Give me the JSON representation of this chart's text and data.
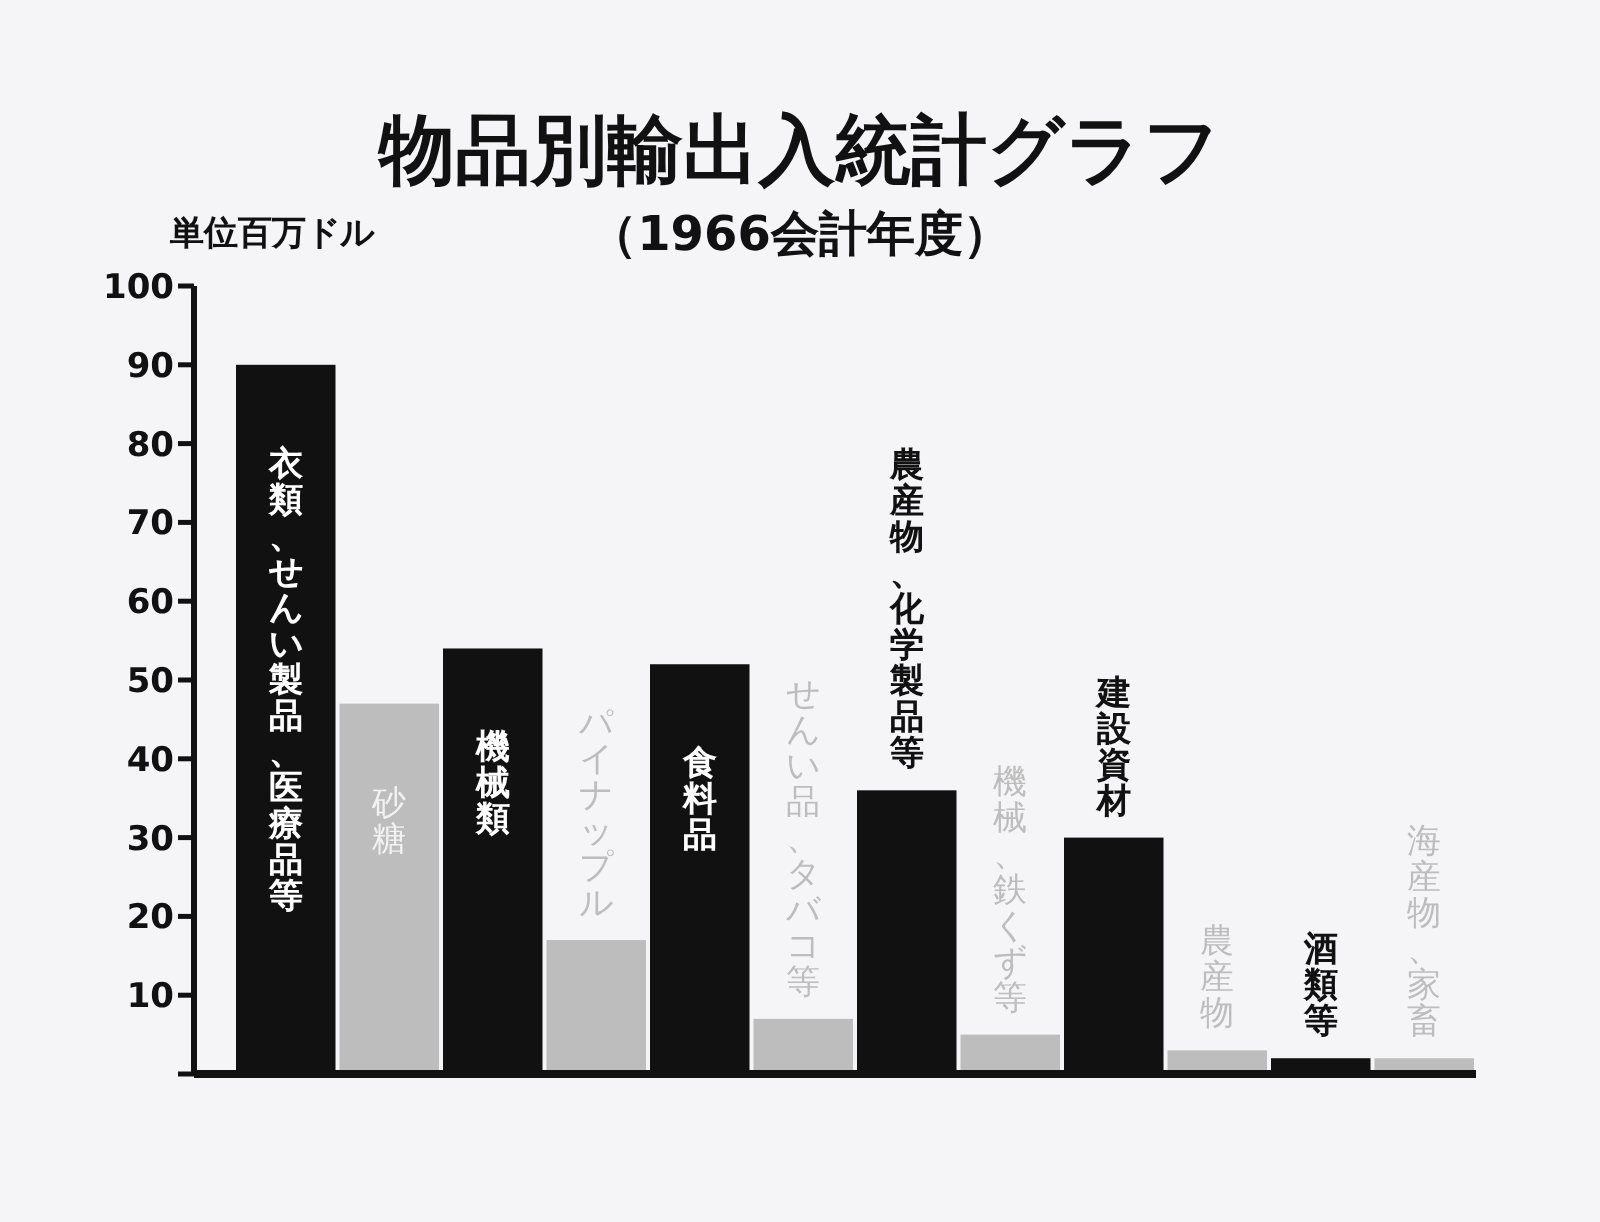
{
  "chart_data": {
    "type": "bar",
    "title": "物品別輸出入統計グラフ",
    "subtitle": "（1966会計年度）",
    "ylabel": "単位百万ドル",
    "categories": [
      "衣類、せんい製品、医療品等",
      "砂糖",
      "機械類",
      "パイナップル",
      "食料品",
      "せんい品、タバコ等",
      "農産物、化学製品等",
      "機械、鉄くず等",
      "建設資材",
      "農産物",
      "酒類等",
      "海産物、家畜"
    ],
    "values": [
      90,
      47,
      54,
      17,
      52,
      7,
      36,
      5,
      30,
      3,
      2,
      2
    ],
    "colors": [
      "#111111",
      "#bdbdbd",
      "#111111",
      "#bdbdbd",
      "#111111",
      "#bdbdbd",
      "#111111",
      "#bdbdbd",
      "#111111",
      "#bdbdbd",
      "#111111",
      "#bdbdbd"
    ],
    "ylim": [
      0,
      100
    ],
    "yticks": [
      {
        "value": 0,
        "label": null
      },
      10,
      20,
      30,
      40,
      50,
      60,
      70,
      80,
      90,
      100
    ]
  }
}
